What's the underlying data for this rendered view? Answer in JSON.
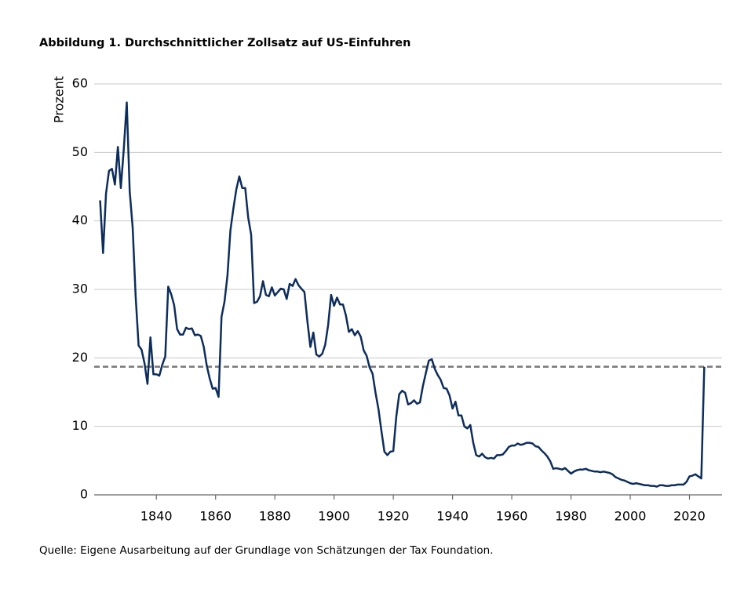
{
  "chart_data": {
    "type": "line",
    "title": "Abbildung 1. Durchschnittlicher Zollsatz auf US-Einfuhren",
    "y_label": "Prozent",
    "source": "Quelle: Eigene Ausarbeitung auf der Grundlage von Schätzungen der Tax Foundation.",
    "x": [
      1821,
      1822,
      1823,
      1824,
      1825,
      1826,
      1827,
      1828,
      1829,
      1830,
      1831,
      1832,
      1833,
      1834,
      1835,
      1836,
      1837,
      1838,
      1839,
      1840,
      1841,
      1842,
      1843,
      1844,
      1845,
      1846,
      1847,
      1848,
      1849,
      1850,
      1851,
      1852,
      1853,
      1854,
      1855,
      1856,
      1857,
      1858,
      1859,
      1860,
      1861,
      1862,
      1863,
      1864,
      1865,
      1866,
      1867,
      1868,
      1869,
      1870,
      1871,
      1872,
      1873,
      1874,
      1875,
      1876,
      1877,
      1878,
      1879,
      1880,
      1881,
      1882,
      1883,
      1884,
      1885,
      1886,
      1887,
      1888,
      1889,
      1890,
      1891,
      1892,
      1893,
      1894,
      1895,
      1896,
      1897,
      1898,
      1899,
      1900,
      1901,
      1902,
      1903,
      1904,
      1905,
      1906,
      1907,
      1908,
      1909,
      1910,
      1911,
      1912,
      1913,
      1914,
      1915,
      1916,
      1917,
      1918,
      1919,
      1920,
      1921,
      1922,
      1923,
      1924,
      1925,
      1926,
      1927,
      1928,
      1929,
      1930,
      1931,
      1932,
      1933,
      1934,
      1935,
      1936,
      1937,
      1938,
      1939,
      1940,
      1941,
      1942,
      1943,
      1944,
      1945,
      1946,
      1947,
      1948,
      1949,
      1950,
      1951,
      1952,
      1953,
      1954,
      1955,
      1956,
      1957,
      1958,
      1959,
      1960,
      1961,
      1962,
      1963,
      1964,
      1965,
      1966,
      1967,
      1968,
      1969,
      1970,
      1971,
      1972,
      1973,
      1974,
      1975,
      1976,
      1977,
      1978,
      1979,
      1980,
      1981,
      1982,
      1983,
      1984,
      1985,
      1986,
      1987,
      1988,
      1989,
      1990,
      1991,
      1992,
      1993,
      1994,
      1995,
      1996,
      1997,
      1998,
      1999,
      2000,
      2001,
      2002,
      2003,
      2004,
      2005,
      2006,
      2007,
      2008,
      2009,
      2010,
      2011,
      2012,
      2013,
      2014,
      2015,
      2016,
      2017,
      2018,
      2019,
      2020,
      2021,
      2022,
      2023,
      2024,
      2025
    ],
    "series": [
      {
        "name": "Zollsatz",
        "color": "#0d2d5c",
        "values": [
          43,
          35.3,
          44,
          47.3,
          47.6,
          45.3,
          50.8,
          44.8,
          50.5,
          57.3,
          44.3,
          39,
          29,
          21.8,
          21.2,
          19.2,
          16.2,
          23,
          17.6,
          17.6,
          17.4,
          19,
          20.2,
          30.4,
          29.3,
          27.7,
          24.2,
          23.4,
          23.4,
          24.4,
          24.2,
          24.3,
          23.3,
          23.4,
          23.2,
          21.6,
          18.9,
          17,
          15.5,
          15.6,
          14.3,
          26,
          28.2,
          32,
          38.6,
          41.8,
          44.6,
          46.5,
          44.8,
          44.8,
          40.5,
          38,
          28,
          28.2,
          29,
          31.2,
          29.2,
          29,
          30.3,
          29.1,
          29.6,
          30.1,
          30,
          28.6,
          30.8,
          30.5,
          31.5,
          30.6,
          30.1,
          29.6,
          25.3,
          21.6,
          23.7,
          20.5,
          20.2,
          20.6,
          21.9,
          24.8,
          29.2,
          27.6,
          28.8,
          27.8,
          27.8,
          26.2,
          23.8,
          24.2,
          23.3,
          23.9,
          23.1,
          21.1,
          20.3,
          18.6,
          17.7,
          14.9,
          12.5,
          9.3,
          6.3,
          5.8,
          6.3,
          6.4,
          11.4,
          14.7,
          15.2,
          14.9,
          13.2,
          13.4,
          13.8,
          13.3,
          13.5,
          15.9,
          17.8,
          19.6,
          19.8,
          18.4,
          17.5,
          16.8,
          15.6,
          15.5,
          14.5,
          12.6,
          13.6,
          11.6,
          11.6,
          10,
          9.7,
          10.2,
          7.6,
          5.8,
          5.6,
          6,
          5.5,
          5.3,
          5.4,
          5.3,
          5.8,
          5.8,
          5.9,
          6.4,
          7,
          7.2,
          7.2,
          7.5,
          7.3,
          7.4,
          7.6,
          7.6,
          7.5,
          7.1,
          7,
          6.5,
          6.1,
          5.6,
          4.9,
          3.8,
          3.9,
          3.8,
          3.7,
          3.9,
          3.5,
          3.1,
          3.4,
          3.6,
          3.7,
          3.7,
          3.8,
          3.6,
          3.5,
          3.4,
          3.4,
          3.3,
          3.4,
          3.3,
          3.2,
          3,
          2.6,
          2.4,
          2.2,
          2.1,
          1.9,
          1.7,
          1.6,
          1.7,
          1.6,
          1.5,
          1.4,
          1.4,
          1.3,
          1.3,
          1.2,
          1.4,
          1.4,
          1.3,
          1.3,
          1.4,
          1.4,
          1.5,
          1.5,
          1.5,
          1.9,
          2.7,
          2.8,
          3,
          2.7,
          2.4,
          18.7
        ]
      }
    ],
    "reference_line": {
      "value": 18.7,
      "color": "#777777"
    },
    "xlim": [
      1819,
      2031
    ],
    "xticks": [
      1840,
      1860,
      1880,
      1900,
      1920,
      1940,
      1960,
      1980,
      2000,
      2020
    ],
    "ylim": [
      0,
      60
    ],
    "yticks": [
      0,
      10,
      20,
      30,
      40,
      50,
      60
    ],
    "grid": true
  }
}
